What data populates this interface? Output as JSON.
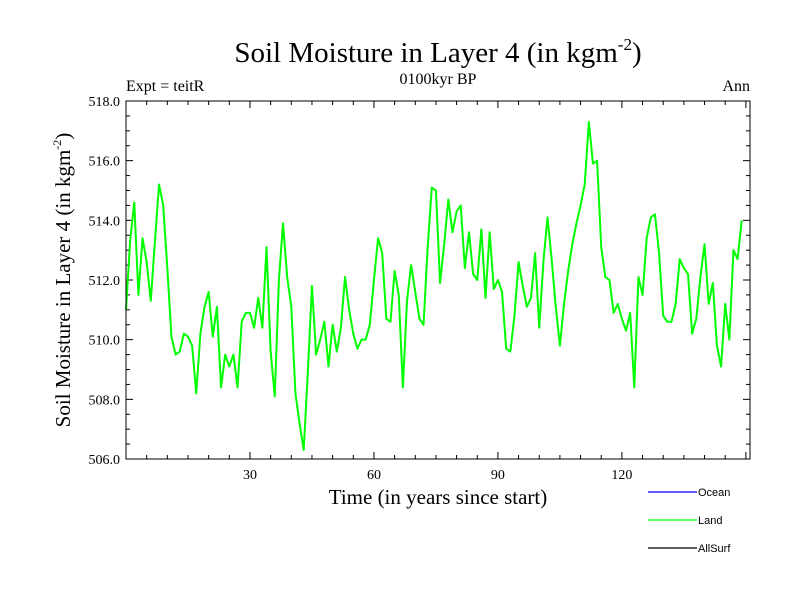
{
  "header": {
    "title": "Soil Moisture in Layer 4 (in kgm",
    "title_exp": "-2",
    "title_close": ")",
    "expt": "Expt = teitR",
    "period": "0100kyr BP",
    "season": "Ann"
  },
  "chart_data": {
    "type": "line",
    "title": "Soil Moisture in Layer 4 (in kgm-2)",
    "xlabel": "Time (in years since start)",
    "ylabel": "Soil Moisture in Layer 4 (in kgm-2)",
    "ylabel_main": "Soil Moisture in Layer 4 (in kgm",
    "ylabel_exp": "-2",
    "ylabel_close": ")",
    "xlim": [
      0,
      151
    ],
    "ylim": [
      506.0,
      518.0
    ],
    "x_ticks": [
      30,
      60,
      90,
      120
    ],
    "x_tick_labels": [
      "30",
      "60",
      "90",
      "120"
    ],
    "y_ticks": [
      506,
      508,
      510,
      512,
      514,
      516,
      518
    ],
    "y_tick_labels": [
      "506.0",
      "508.0",
      "510.0",
      "512.0",
      "514.0",
      "516.0",
      "518.0"
    ],
    "legend_position": "bottom-right",
    "series": [
      {
        "name": "Ocean",
        "color": "#0000ff",
        "values": []
      },
      {
        "name": "Land",
        "color": "#00ff00",
        "values": [
          511.0,
          513.3,
          514.6,
          511.5,
          513.4,
          512.6,
          511.3,
          513.3,
          515.2,
          514.5,
          512.4,
          510.1,
          509.5,
          509.6,
          510.2,
          510.1,
          509.8,
          508.2,
          510.2,
          511.1,
          511.6,
          510.1,
          511.1,
          508.4,
          509.5,
          509.1,
          509.5,
          508.4,
          510.6,
          510.9,
          510.9,
          510.4,
          511.4,
          510.4,
          513.1,
          509.6,
          508.1,
          512.0,
          513.9,
          512.1,
          511.1,
          508.2,
          507.2,
          506.3,
          508.9,
          511.8,
          509.5,
          510.0,
          510.6,
          509.1,
          510.5,
          509.6,
          510.4,
          512.1,
          511.0,
          510.2,
          509.7,
          510.0,
          510.0,
          510.5,
          512.0,
          513.4,
          512.9,
          510.7,
          510.6,
          512.3,
          511.5,
          508.4,
          511.3,
          512.5,
          511.6,
          510.7,
          510.5,
          513.1,
          515.1,
          515.0,
          511.9,
          513.2,
          514.7,
          513.6,
          514.3,
          514.5,
          512.4,
          513.6,
          512.2,
          512.0,
          513.7,
          511.4,
          513.6,
          511.7,
          512.0,
          511.6,
          509.7,
          509.6,
          510.8,
          512.6,
          511.8,
          511.1,
          511.4,
          512.9,
          510.4,
          512.6,
          514.1,
          512.7,
          511.1,
          509.8,
          511.2,
          512.3,
          513.2,
          513.9,
          514.5,
          515.2,
          517.3,
          515.9,
          516.0,
          513.1,
          512.1,
          512.0,
          510.9,
          511.2,
          510.7,
          510.3,
          510.9,
          508.4,
          512.1,
          511.5,
          513.4,
          514.1,
          514.2,
          512.9,
          510.8,
          510.6,
          510.6,
          511.2,
          512.7,
          512.4,
          512.2,
          510.2,
          510.7,
          512.1,
          513.2,
          511.2,
          511.9,
          509.8,
          509.1,
          511.2,
          510.0,
          513.0,
          512.7,
          514.0
        ]
      },
      {
        "name": "AllSurf",
        "color": "#000000",
        "values": []
      }
    ]
  }
}
